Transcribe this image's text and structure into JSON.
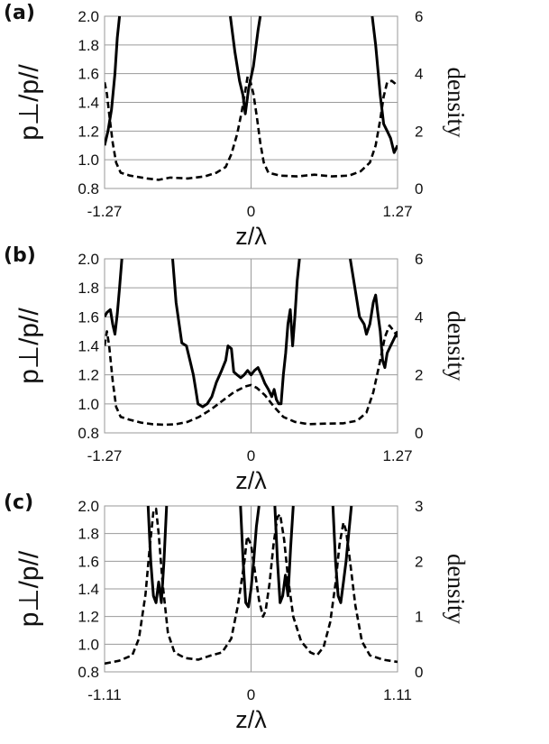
{
  "chart_data": [
    {
      "type": "line",
      "panel_label": "(a)",
      "ylabel": "p⊥/p//",
      "y2label": "density",
      "xlabel": "z/λ",
      "xlim": [
        -1.27,
        1.27
      ],
      "x_ticks": [
        "-1.27",
        "0",
        "1.27"
      ],
      "ylim": [
        0.8,
        2.0
      ],
      "y_ticks": [
        "0.8",
        "1.0",
        "1.2",
        "1.4",
        "1.6",
        "1.8",
        "2.0"
      ],
      "y2lim": [
        0,
        6
      ],
      "y2_ticks": [
        "0",
        "2",
        "4",
        "6"
      ],
      "grid": true,
      "series": [
        {
          "axis": "left",
          "style": "solid",
          "segments": [
            [
              [
                -1.27,
                1.1
              ],
              [
                -1.24,
                1.2
              ],
              [
                -1.21,
                1.35
              ],
              [
                -1.18,
                1.6
              ],
              [
                -1.16,
                1.85
              ],
              [
                -1.14,
                2.0
              ]
            ],
            [
              [
                -0.18,
                2.0
              ],
              [
                -0.14,
                1.75
              ],
              [
                -0.1,
                1.55
              ],
              [
                -0.07,
                1.45
              ],
              [
                -0.05,
                1.32
              ],
              [
                -0.02,
                1.5
              ],
              [
                0.02,
                1.65
              ],
              [
                0.06,
                1.9
              ],
              [
                0.08,
                2.0
              ]
            ],
            [
              [
                1.05,
                2.0
              ],
              [
                1.08,
                1.8
              ],
              [
                1.12,
                1.45
              ],
              [
                1.15,
                1.25
              ],
              [
                1.18,
                1.2
              ],
              [
                1.21,
                1.15
              ],
              [
                1.24,
                1.05
              ],
              [
                1.27,
                1.1
              ]
            ]
          ]
        },
        {
          "axis": "right",
          "style": "dashed",
          "points": [
            [
              -1.27,
              3.7
            ],
            [
              -1.25,
              3.3
            ],
            [
              -1.23,
              2.6
            ],
            [
              -1.2,
              1.6
            ],
            [
              -1.17,
              0.9
            ],
            [
              -1.13,
              0.55
            ],
            [
              -1.05,
              0.45
            ],
            [
              -0.9,
              0.35
            ],
            [
              -0.8,
              0.3
            ],
            [
              -0.7,
              0.38
            ],
            [
              -0.55,
              0.35
            ],
            [
              -0.4,
              0.42
            ],
            [
              -0.3,
              0.55
            ],
            [
              -0.22,
              0.75
            ],
            [
              -0.17,
              1.2
            ],
            [
              -0.12,
              1.9
            ],
            [
              -0.08,
              2.7
            ],
            [
              -0.05,
              3.4
            ],
            [
              -0.03,
              3.9
            ],
            [
              -0.01,
              3.8
            ],
            [
              0.02,
              3.3
            ],
            [
              0.05,
              2.5
            ],
            [
              0.08,
              1.6
            ],
            [
              0.11,
              0.9
            ],
            [
              0.15,
              0.55
            ],
            [
              0.25,
              0.45
            ],
            [
              0.4,
              0.42
            ],
            [
              0.55,
              0.48
            ],
            [
              0.7,
              0.42
            ],
            [
              0.85,
              0.45
            ],
            [
              0.95,
              0.6
            ],
            [
              1.03,
              0.9
            ],
            [
              1.08,
              1.5
            ],
            [
              1.12,
              2.4
            ],
            [
              1.15,
              3.2
            ],
            [
              1.18,
              3.7
            ],
            [
              1.22,
              3.75
            ],
            [
              1.25,
              3.65
            ],
            [
              1.27,
              3.55
            ]
          ]
        }
      ]
    },
    {
      "type": "line",
      "panel_label": "(b)",
      "ylabel": "p⊥/p//",
      "y2label": "density",
      "xlabel": "z/λ",
      "xlim": [
        -1.27,
        1.27
      ],
      "x_ticks": [
        "-1.27",
        "0",
        "1.27"
      ],
      "ylim": [
        0.8,
        2.0
      ],
      "y_ticks": [
        "0.8",
        "1.0",
        "1.2",
        "1.4",
        "1.6",
        "1.8",
        "2.0"
      ],
      "y2lim": [
        0,
        6
      ],
      "y2_ticks": [
        "0",
        "2",
        "4",
        "6"
      ],
      "grid": true,
      "series": [
        {
          "axis": "left",
          "style": "solid",
          "segments": [
            [
              [
                -1.27,
                1.6
              ],
              [
                -1.25,
                1.63
              ],
              [
                -1.22,
                1.65
              ],
              [
                -1.2,
                1.55
              ],
              [
                -1.18,
                1.48
              ],
              [
                -1.16,
                1.62
              ],
              [
                -1.14,
                1.8
              ],
              [
                -1.12,
                2.0
              ]
            ],
            [
              [
                -0.68,
                2.0
              ],
              [
                -0.65,
                1.7
              ],
              [
                -0.6,
                1.42
              ],
              [
                -0.56,
                1.4
              ],
              [
                -0.53,
                1.3
              ],
              [
                -0.5,
                1.2
              ],
              [
                -0.48,
                1.1
              ],
              [
                -0.46,
                1.0
              ],
              [
                -0.42,
                0.98
              ],
              [
                -0.38,
                1.0
              ],
              [
                -0.34,
                1.05
              ],
              [
                -0.3,
                1.15
              ],
              [
                -0.26,
                1.22
              ],
              [
                -0.22,
                1.3
              ],
              [
                -0.2,
                1.4
              ],
              [
                -0.17,
                1.38
              ],
              [
                -0.15,
                1.22
              ],
              [
                -0.12,
                1.2
              ],
              [
                -0.09,
                1.18
              ],
              [
                -0.06,
                1.2
              ],
              [
                -0.03,
                1.23
              ],
              [
                0.0,
                1.2
              ],
              [
                0.03,
                1.23
              ],
              [
                0.06,
                1.25
              ],
              [
                0.09,
                1.2
              ],
              [
                0.12,
                1.14
              ],
              [
                0.15,
                1.1
              ],
              [
                0.18,
                1.05
              ],
              [
                0.2,
                1.1
              ],
              [
                0.22,
                1.03
              ],
              [
                0.24,
                1.0
              ],
              [
                0.26,
                1.0
              ],
              [
                0.28,
                1.2
              ],
              [
                0.3,
                1.35
              ],
              [
                0.32,
                1.55
              ],
              [
                0.34,
                1.65
              ],
              [
                0.36,
                1.4
              ],
              [
                0.38,
                1.6
              ],
              [
                0.4,
                1.85
              ],
              [
                0.42,
                2.0
              ]
            ],
            [
              [
                0.86,
                2.0
              ],
              [
                0.9,
                1.8
              ],
              [
                0.94,
                1.6
              ],
              [
                0.98,
                1.55
              ],
              [
                1.0,
                1.48
              ],
              [
                1.03,
                1.55
              ],
              [
                1.06,
                1.7
              ],
              [
                1.08,
                1.75
              ],
              [
                1.1,
                1.62
              ],
              [
                1.12,
                1.5
              ],
              [
                1.14,
                1.3
              ],
              [
                1.16,
                1.25
              ],
              [
                1.18,
                1.35
              ],
              [
                1.21,
                1.4
              ],
              [
                1.24,
                1.45
              ],
              [
                1.27,
                1.5
              ]
            ]
          ]
        },
        {
          "axis": "right",
          "style": "dashed",
          "points": [
            [
              -1.27,
              3.0
            ],
            [
              -1.25,
              3.5
            ],
            [
              -1.23,
              3.0
            ],
            [
              -1.2,
              1.8
            ],
            [
              -1.17,
              0.9
            ],
            [
              -1.13,
              0.55
            ],
            [
              -1.05,
              0.45
            ],
            [
              -0.95,
              0.35
            ],
            [
              -0.85,
              0.3
            ],
            [
              -0.75,
              0.28
            ],
            [
              -0.65,
              0.3
            ],
            [
              -0.55,
              0.38
            ],
            [
              -0.45,
              0.55
            ],
            [
              -0.35,
              0.8
            ],
            [
              -0.25,
              1.1
            ],
            [
              -0.15,
              1.4
            ],
            [
              -0.05,
              1.6
            ],
            [
              0.0,
              1.65
            ],
            [
              0.05,
              1.55
            ],
            [
              0.12,
              1.3
            ],
            [
              0.2,
              0.9
            ],
            [
              0.28,
              0.55
            ],
            [
              0.38,
              0.38
            ],
            [
              0.5,
              0.3
            ],
            [
              0.65,
              0.32
            ],
            [
              0.8,
              0.33
            ],
            [
              0.92,
              0.42
            ],
            [
              1.0,
              0.7
            ],
            [
              1.06,
              1.4
            ],
            [
              1.12,
              2.5
            ],
            [
              1.16,
              3.3
            ],
            [
              1.2,
              3.7
            ],
            [
              1.24,
              3.5
            ],
            [
              1.27,
              3.3
            ]
          ]
        }
      ]
    },
    {
      "type": "line",
      "panel_label": "(c)",
      "ylabel": "p⊥/p//",
      "y2label": "density",
      "xlabel": "z/λ",
      "xlim": [
        -1.11,
        1.11
      ],
      "x_ticks": [
        "-1.11",
        "0",
        "1.11"
      ],
      "ylim": [
        0.8,
        2.0
      ],
      "y_ticks": [
        "0.8",
        "1.0",
        "1.2",
        "1.4",
        "1.6",
        "1.8",
        "2.0"
      ],
      "y2lim": [
        0,
        3
      ],
      "y2_ticks": [
        "0",
        "1",
        "2",
        "3"
      ],
      "grid": true,
      "series": [
        {
          "axis": "left",
          "style": "solid",
          "segments": [
            [
              [
                -0.78,
                2.0
              ],
              [
                -0.76,
                1.6
              ],
              [
                -0.74,
                1.35
              ],
              [
                -0.72,
                1.3
              ],
              [
                -0.7,
                1.45
              ],
              [
                -0.68,
                1.3
              ],
              [
                -0.66,
                1.6
              ],
              [
                -0.64,
                2.0
              ]
            ],
            [
              [
                -0.08,
                2.0
              ],
              [
                -0.06,
                1.6
              ],
              [
                -0.04,
                1.3
              ],
              [
                -0.02,
                1.27
              ],
              [
                0.0,
                1.4
              ],
              [
                0.02,
                1.6
              ],
              [
                0.04,
                1.85
              ],
              [
                0.06,
                2.0
              ]
            ],
            [
              [
                0.18,
                2.0
              ],
              [
                0.2,
                1.6
              ],
              [
                0.22,
                1.3
              ],
              [
                0.24,
                1.35
              ],
              [
                0.26,
                1.5
              ],
              [
                0.28,
                1.35
              ],
              [
                0.3,
                1.7
              ],
              [
                0.32,
                2.0
              ]
            ],
            [
              [
                0.62,
                2.0
              ],
              [
                0.64,
                1.6
              ],
              [
                0.66,
                1.35
              ],
              [
                0.68,
                1.3
              ],
              [
                0.7,
                1.45
              ],
              [
                0.72,
                1.6
              ],
              [
                0.74,
                1.8
              ],
              [
                0.76,
                2.0
              ]
            ]
          ]
        },
        {
          "axis": "right",
          "style": "dashed",
          "points": [
            [
              -1.11,
              0.15
            ],
            [
              -1.0,
              0.2
            ],
            [
              -0.9,
              0.3
            ],
            [
              -0.85,
              0.6
            ],
            [
              -0.8,
              1.4
            ],
            [
              -0.77,
              2.2
            ],
            [
              -0.74,
              2.9
            ],
            [
              -0.72,
              2.95
            ],
            [
              -0.7,
              2.5
            ],
            [
              -0.67,
              1.6
            ],
            [
              -0.63,
              0.7
            ],
            [
              -0.58,
              0.35
            ],
            [
              -0.5,
              0.25
            ],
            [
              -0.4,
              0.22
            ],
            [
              -0.3,
              0.3
            ],
            [
              -0.22,
              0.35
            ],
            [
              -0.15,
              0.6
            ],
            [
              -0.1,
              1.2
            ],
            [
              -0.05,
              2.0
            ],
            [
              -0.03,
              2.45
            ],
            [
              0.0,
              2.3
            ],
            [
              0.03,
              1.8
            ],
            [
              0.06,
              1.3
            ],
            [
              0.09,
              1.0
            ],
            [
              0.11,
              1.1
            ],
            [
              0.14,
              1.6
            ],
            [
              0.17,
              2.3
            ],
            [
              0.2,
              2.8
            ],
            [
              0.22,
              2.85
            ],
            [
              0.25,
              2.4
            ],
            [
              0.28,
              1.7
            ],
            [
              0.32,
              1.0
            ],
            [
              0.38,
              0.55
            ],
            [
              0.45,
              0.35
            ],
            [
              0.5,
              0.3
            ],
            [
              0.55,
              0.45
            ],
            [
              0.6,
              0.9
            ],
            [
              0.64,
              1.6
            ],
            [
              0.67,
              2.3
            ],
            [
              0.7,
              2.7
            ],
            [
              0.72,
              2.55
            ],
            [
              0.75,
              2.0
            ],
            [
              0.79,
              1.2
            ],
            [
              0.84,
              0.55
            ],
            [
              0.9,
              0.3
            ],
            [
              1.0,
              0.22
            ],
            [
              1.11,
              0.18
            ]
          ]
        }
      ]
    }
  ]
}
